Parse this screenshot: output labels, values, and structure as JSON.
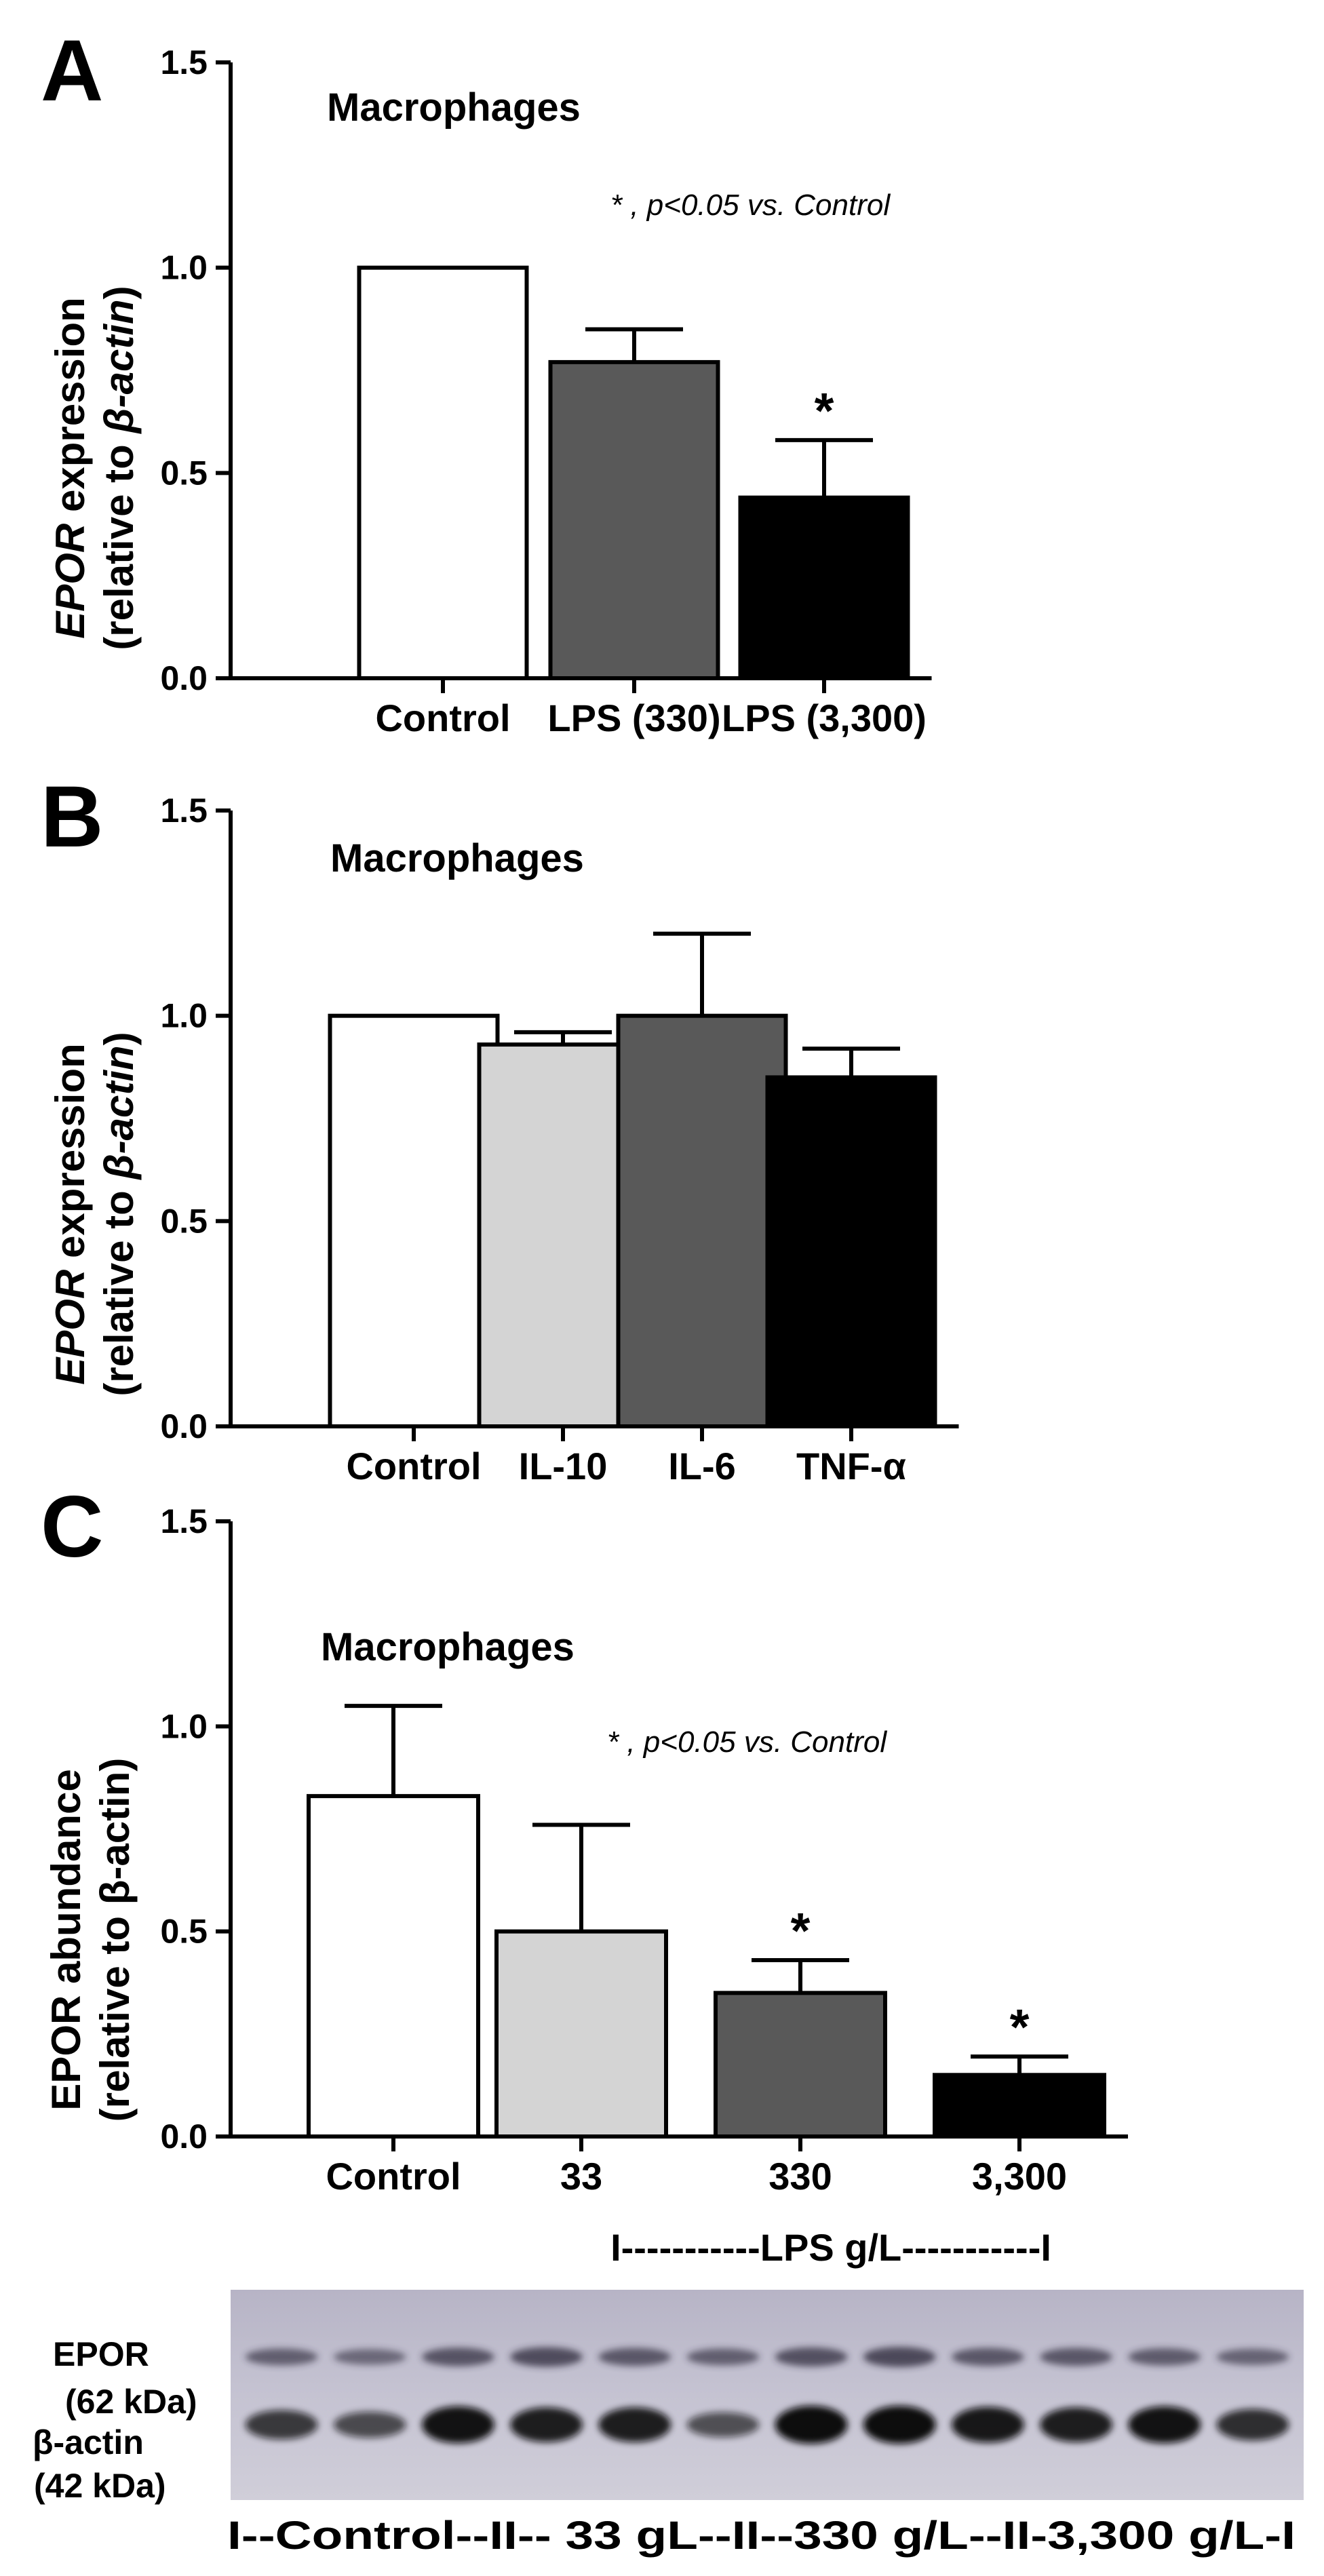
{
  "colors": {
    "white": "#ffffff",
    "light_gray": "#d4d4d4",
    "dark_gray": "#595959",
    "black": "#000000",
    "axis": "#000000"
  },
  "chart_data": [
    {
      "id": "A",
      "type": "bar",
      "panel_label": "A",
      "title": "Macrophages",
      "ylabel_italic": "EPOR",
      "ylabel_line1_rest": " expression",
      "ylabel_line2_prefix": "(relative to ",
      "ylabel_line2_italic": "β-actin",
      "ylabel_line2_suffix": ")",
      "ylim": [
        0,
        1.5
      ],
      "yticks": [
        "0.0",
        "0.5",
        "1.0",
        "1.5"
      ],
      "annotation": "* , p<0.05 vs. Control",
      "categories": [
        "Control",
        "LPS (330)",
        "LPS (3,300)"
      ],
      "values": [
        1.0,
        0.77,
        0.44
      ],
      "errors": [
        0,
        0.08,
        0.14
      ],
      "fills": [
        "white",
        "dark_gray",
        "black"
      ],
      "significant": [
        "",
        "",
        "*"
      ]
    },
    {
      "id": "B",
      "type": "bar",
      "panel_label": "B",
      "title": "Macrophages",
      "ylabel_italic": "EPOR",
      "ylabel_line1_rest": " expression",
      "ylabel_line2_prefix": "(relative to ",
      "ylabel_line2_italic": "β-actin",
      "ylabel_line2_suffix": ")",
      "ylim": [
        0,
        1.5
      ],
      "yticks": [
        "0.0",
        "0.5",
        "1.0",
        "1.5"
      ],
      "annotation": "",
      "categories": [
        "Control",
        "IL-10",
        "IL-6",
        "TNF-α"
      ],
      "values": [
        1.0,
        0.93,
        1.0,
        0.85
      ],
      "errors": [
        0,
        0.03,
        0.2,
        0.07
      ],
      "fills": [
        "white",
        "light_gray",
        "dark_gray",
        "black"
      ],
      "significant": [
        "",
        "",
        "",
        ""
      ]
    },
    {
      "id": "C",
      "type": "bar",
      "panel_label": "C",
      "title": "Macrophages",
      "ylabel_italic": "",
      "ylabel_line1_rest": "EPOR abundance",
      "ylabel_line2_prefix": "(relative to β-actin)",
      "ylabel_line2_italic": "",
      "ylabel_line2_suffix": "",
      "ylim": [
        0,
        1.5
      ],
      "yticks": [
        "0.0",
        "0.5",
        "1.0",
        "1.5"
      ],
      "annotation": "* , p<0.05 vs. Control",
      "categories": [
        "Control",
        "33",
        "330",
        "3,300"
      ],
      "values": [
        0.83,
        0.5,
        0.35,
        0.15
      ],
      "errors": [
        0.22,
        0.26,
        0.08,
        0.045
      ],
      "fills": [
        "white",
        "light_gray",
        "dark_gray",
        "black"
      ],
      "significant": [
        "",
        "",
        "*",
        "*"
      ],
      "group_label": "I-----------LPS g/L-----------I"
    }
  ],
  "blot": {
    "epor_label_1": "EPOR",
    "epor_label_2": "(62 kDa)",
    "actin_label_1": "β-actin",
    "actin_label_2": "(42 kDa)",
    "lane_labels": "I--Control--II-- 33 gL--II--330 g/L--II-3,300 g/L-I",
    "lanes": 12
  }
}
